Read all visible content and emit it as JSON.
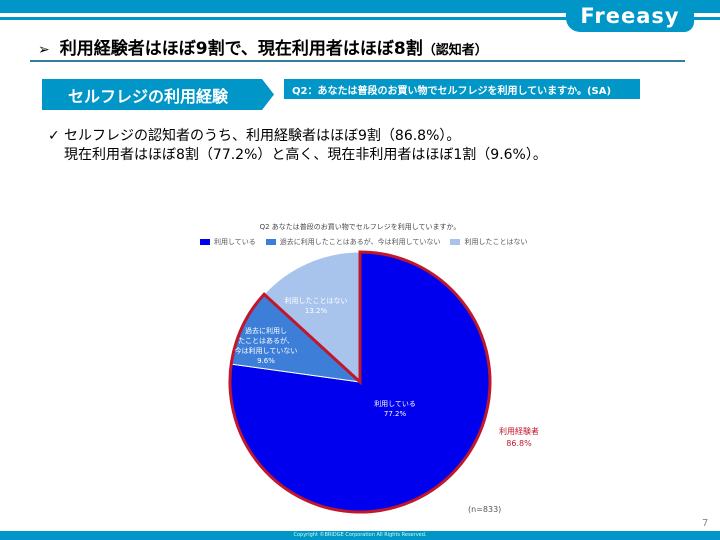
{
  "brand": {
    "logo_text": "Freeasy",
    "accent": "#0096c8"
  },
  "header": {
    "title_main": "利用経験者はほぼ9割で、現在利用者はほぼ8割",
    "title_sub": "（認知者）"
  },
  "section": {
    "label": "セルフレジの利用経験"
  },
  "question": {
    "label": "Q2：あなたは普段のお買い物でセルフレジを利用していますか。(SA)"
  },
  "summary": {
    "line1": "セルフレジの認知者のうち、利用経験者はほぼ9割（86.8%）。",
    "line2": "現在利用者はほぼ8割（77.2%）と高く、現在非利用者はほぼ1割（9.6%）。"
  },
  "chart_data": {
    "type": "pie",
    "title": "Q2 あなたは普段のお買い物でセルフレジを利用していますか。",
    "categories": [
      "利用している",
      "過去に利用したことはあるが、今は利用していない",
      "利用したことはない"
    ],
    "values": [
      77.2,
      9.6,
      13.2
    ],
    "colors": [
      "#0000ee",
      "#3d7fd8",
      "#a8c4ec"
    ],
    "slice_labels": [
      [
        "利用している",
        "77.2%"
      ],
      [
        "過去に利用し",
        "たことはあるが、",
        "今は利用していない",
        "9.6%"
      ],
      [
        "利用したことはない",
        "13.2%"
      ]
    ],
    "legend_position": "top",
    "annotation": {
      "label": "利用経験者",
      "value": "86.8%",
      "color": "#c0172a"
    },
    "sample_size": "(n=833)"
  },
  "page_number": "7",
  "footer": {
    "copyright": "Copyright ©BRIDGE Corporation All Rights Reserved."
  }
}
